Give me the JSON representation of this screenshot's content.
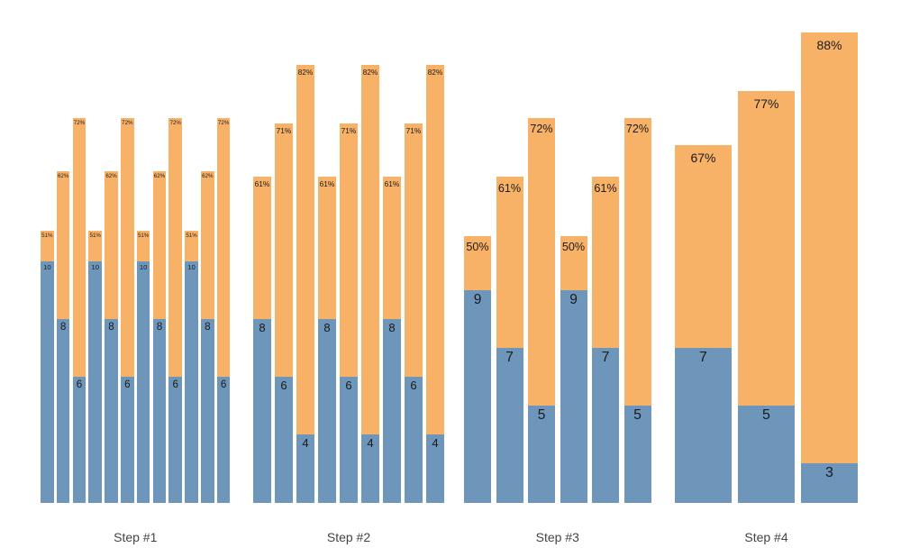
{
  "chart_data": {
    "type": "bar",
    "variant": "grouped-stacked-columns",
    "title": "",
    "xlabel": "",
    "ylabel": "",
    "grid": false,
    "legend": null,
    "axes_visible": false,
    "colors": {
      "base_segment_blue": "#6E96BB",
      "top_segment_orange": "#F8B268",
      "value_label": "#1a1a1a",
      "pct_label": "#1a1a1a",
      "group_label": "#444444",
      "background": "#ffffff"
    },
    "groups": [
      {
        "label": "Step #1",
        "bars": [
          {
            "value": 10,
            "pct": 51
          },
          {
            "value": 8,
            "pct": 62
          },
          {
            "value": 6,
            "pct": 72
          },
          {
            "value": 10,
            "pct": 51
          },
          {
            "value": 8,
            "pct": 62
          },
          {
            "value": 6,
            "pct": 72
          },
          {
            "value": 10,
            "pct": 51
          },
          {
            "value": 8,
            "pct": 62
          },
          {
            "value": 6,
            "pct": 72
          },
          {
            "value": 10,
            "pct": 51
          },
          {
            "value": 8,
            "pct": 62
          },
          {
            "value": 6,
            "pct": 72
          }
        ]
      },
      {
        "label": "Step #2",
        "bars": [
          {
            "value": 8,
            "pct": 61
          },
          {
            "value": 6,
            "pct": 71
          },
          {
            "value": 4,
            "pct": 82
          },
          {
            "value": 8,
            "pct": 61
          },
          {
            "value": 6,
            "pct": 71
          },
          {
            "value": 4,
            "pct": 82
          },
          {
            "value": 8,
            "pct": 61
          },
          {
            "value": 6,
            "pct": 71
          },
          {
            "value": 4,
            "pct": 82
          }
        ]
      },
      {
        "label": "Step #3",
        "bars": [
          {
            "value": 9,
            "pct": 50
          },
          {
            "value": 7,
            "pct": 61
          },
          {
            "value": 5,
            "pct": 72
          },
          {
            "value": 9,
            "pct": 50
          },
          {
            "value": 7,
            "pct": 61
          },
          {
            "value": 5,
            "pct": 72
          }
        ]
      },
      {
        "label": "Step #4",
        "bars": [
          {
            "value": 7,
            "pct": 67
          },
          {
            "value": 5,
            "pct": 77
          },
          {
            "value": 3,
            "pct": 88
          }
        ]
      }
    ]
  }
}
